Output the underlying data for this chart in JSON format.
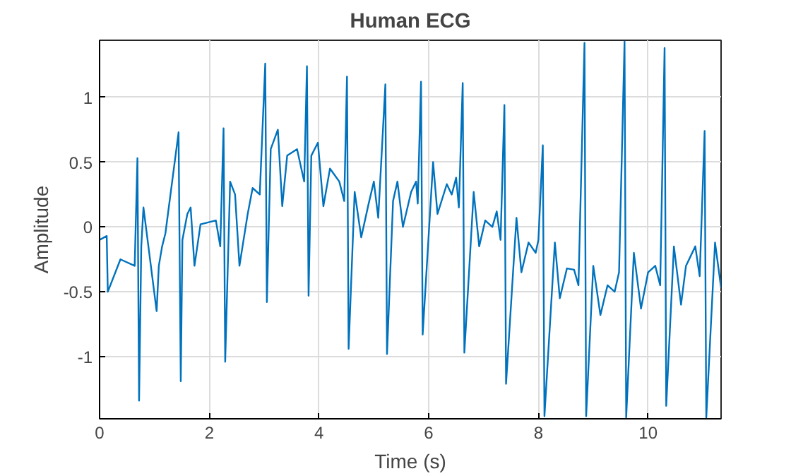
{
  "chart_data": {
    "type": "line",
    "title": "Human ECG",
    "xlabel": "Time (s)",
    "ylabel": "Amplitude",
    "xlim": [
      0,
      11.33
    ],
    "ylim": [
      -1.48,
      1.44
    ],
    "xticks": [
      0,
      2,
      4,
      6,
      8,
      10
    ],
    "yticks": [
      -1,
      -0.5,
      0,
      0.5,
      1
    ],
    "grid": true,
    "series": [
      {
        "color": "#0072bd",
        "x": [
          0,
          0.13,
          0.15,
          0.38,
          0.64,
          0.69,
          0.72,
          0.76,
          0.8,
          1.04,
          1.08,
          1.14,
          1.2,
          1.44,
          1.48,
          1.51,
          1.6,
          1.66,
          1.73,
          1.84,
          2.12,
          2.2,
          2.26,
          2.29,
          2.38,
          2.47,
          2.55,
          2.7,
          2.79,
          2.92,
          3.02,
          3.05,
          3.12,
          3.25,
          3.33,
          3.42,
          3.6,
          3.73,
          3.78,
          3.81,
          3.86,
          3.98,
          4.08,
          4.2,
          4.37,
          4.46,
          4.51,
          4.54,
          4.65,
          4.77,
          4.9,
          5.0,
          5.08,
          5.21,
          5.24,
          5.35,
          5.43,
          5.53,
          5.68,
          5.77,
          5.8,
          5.86,
          5.89,
          6.08,
          6.16,
          6.33,
          6.42,
          6.5,
          6.55,
          6.62,
          6.65,
          6.82,
          6.92,
          7.03,
          7.16,
          7.24,
          7.31,
          7.38,
          7.41,
          7.6,
          7.69,
          7.82,
          7.95,
          8.0,
          8.08,
          8.11,
          8.3,
          8.39,
          8.52,
          8.65,
          8.73,
          8.84,
          8.87,
          9.0,
          9.13,
          9.26,
          9.39,
          9.47,
          9.57,
          9.6,
          9.74,
          9.87,
          10.0,
          10.13,
          10.22,
          10.3,
          10.33,
          10.47,
          10.6,
          10.69,
          10.86,
          10.94,
          11.03,
          11.06,
          11.22,
          11.33
        ],
        "values": [
          -0.1,
          -0.07,
          -0.5,
          -0.25,
          -0.3,
          0.53,
          -1.34,
          -0.15,
          0.15,
          -0.65,
          -0.3,
          -0.15,
          -0.05,
          0.73,
          -1.19,
          -0.1,
          0.1,
          0.15,
          -0.3,
          0.02,
          0.05,
          -0.15,
          0.76,
          -1.04,
          0.35,
          0.25,
          -0.3,
          0.1,
          0.3,
          0.25,
          1.26,
          -0.58,
          0.6,
          0.75,
          0.16,
          0.55,
          0.6,
          0.35,
          1.24,
          -0.53,
          0.55,
          0.65,
          0.16,
          0.45,
          0.35,
          0.2,
          1.16,
          -0.94,
          0.27,
          -0.08,
          0.17,
          0.35,
          0.07,
          1.1,
          -0.98,
          0.2,
          0.35,
          0.0,
          0.27,
          0.35,
          0.18,
          1.12,
          -0.83,
          0.5,
          0.1,
          0.33,
          0.25,
          0.38,
          0.15,
          1.11,
          -0.97,
          0.27,
          -0.15,
          0.05,
          0.0,
          0.12,
          -0.1,
          0.94,
          -1.21,
          0.07,
          -0.35,
          -0.12,
          -0.2,
          -0.1,
          0.63,
          -1.46,
          -0.12,
          -0.55,
          -0.32,
          -0.33,
          -0.45,
          1.42,
          -1.46,
          -0.3,
          -0.68,
          -0.45,
          -0.5,
          -0.35,
          1.43,
          -1.47,
          -0.2,
          -0.63,
          -0.35,
          -0.3,
          -0.45,
          1.38,
          -1.38,
          -0.15,
          -0.6,
          -0.3,
          -0.15,
          -0.38,
          0.74,
          -1.47,
          -0.12,
          -0.47
        ]
      }
    ]
  }
}
